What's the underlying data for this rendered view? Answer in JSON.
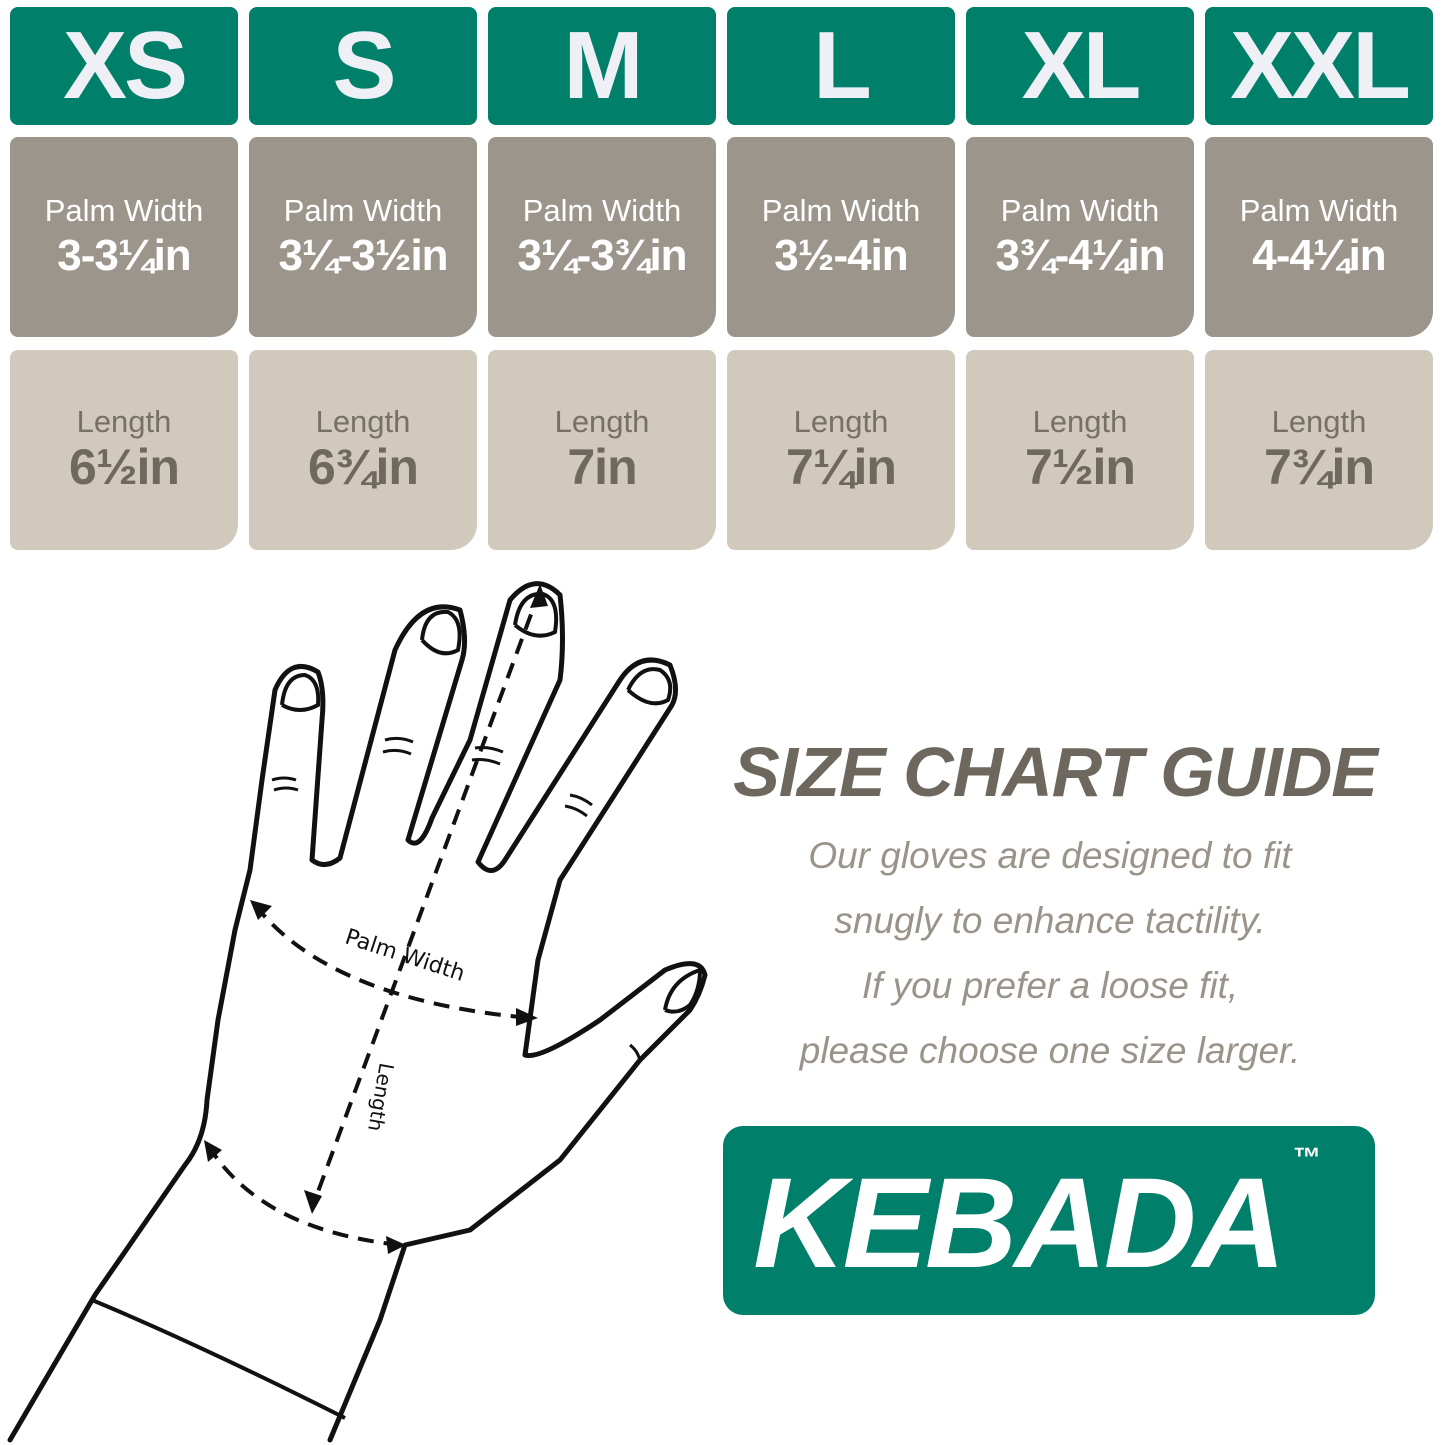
{
  "colors": {
    "header_green": "#007f6a",
    "palm_gray": "#9c958b",
    "length_beige": "#d1c9bc",
    "text_gray": "#6e675e"
  },
  "sizes": [
    {
      "size": "XS",
      "palm_label": "Palm Width",
      "palm_value": "3-3¼in",
      "length_label": "Length",
      "length_value": "6½in"
    },
    {
      "size": "S",
      "palm_label": "Palm Width",
      "palm_value": "3¼-3½in",
      "length_label": "Length",
      "length_value": "6¾in"
    },
    {
      "size": "M",
      "palm_label": "Palm Width",
      "palm_value": "3¼-3¾in",
      "length_label": "Length",
      "length_value": "7in"
    },
    {
      "size": "L",
      "palm_label": "Palm Width",
      "palm_value": "3½-4in",
      "length_label": "Length",
      "length_value": "7¼in"
    },
    {
      "size": "XL",
      "palm_label": "Palm Width",
      "palm_value": "3¾-4¼in",
      "length_label": "Length",
      "length_value": "7½in"
    },
    {
      "size": "XXL",
      "palm_label": "Palm Width",
      "palm_value": "4-4¼in",
      "length_label": "Length",
      "length_value": "7¾in"
    }
  ],
  "diagram": {
    "palm_width_label": "Palm Width",
    "length_label": "Length"
  },
  "guide": {
    "title": "SIZE CHART GUIDE",
    "lines": [
      "Our gloves are designed to fit",
      "snugly to enhance tactility.",
      "If you prefer a loose fit,",
      "please choose one size larger."
    ]
  },
  "brand": {
    "name": "KEBADA",
    "trademark": "™"
  }
}
